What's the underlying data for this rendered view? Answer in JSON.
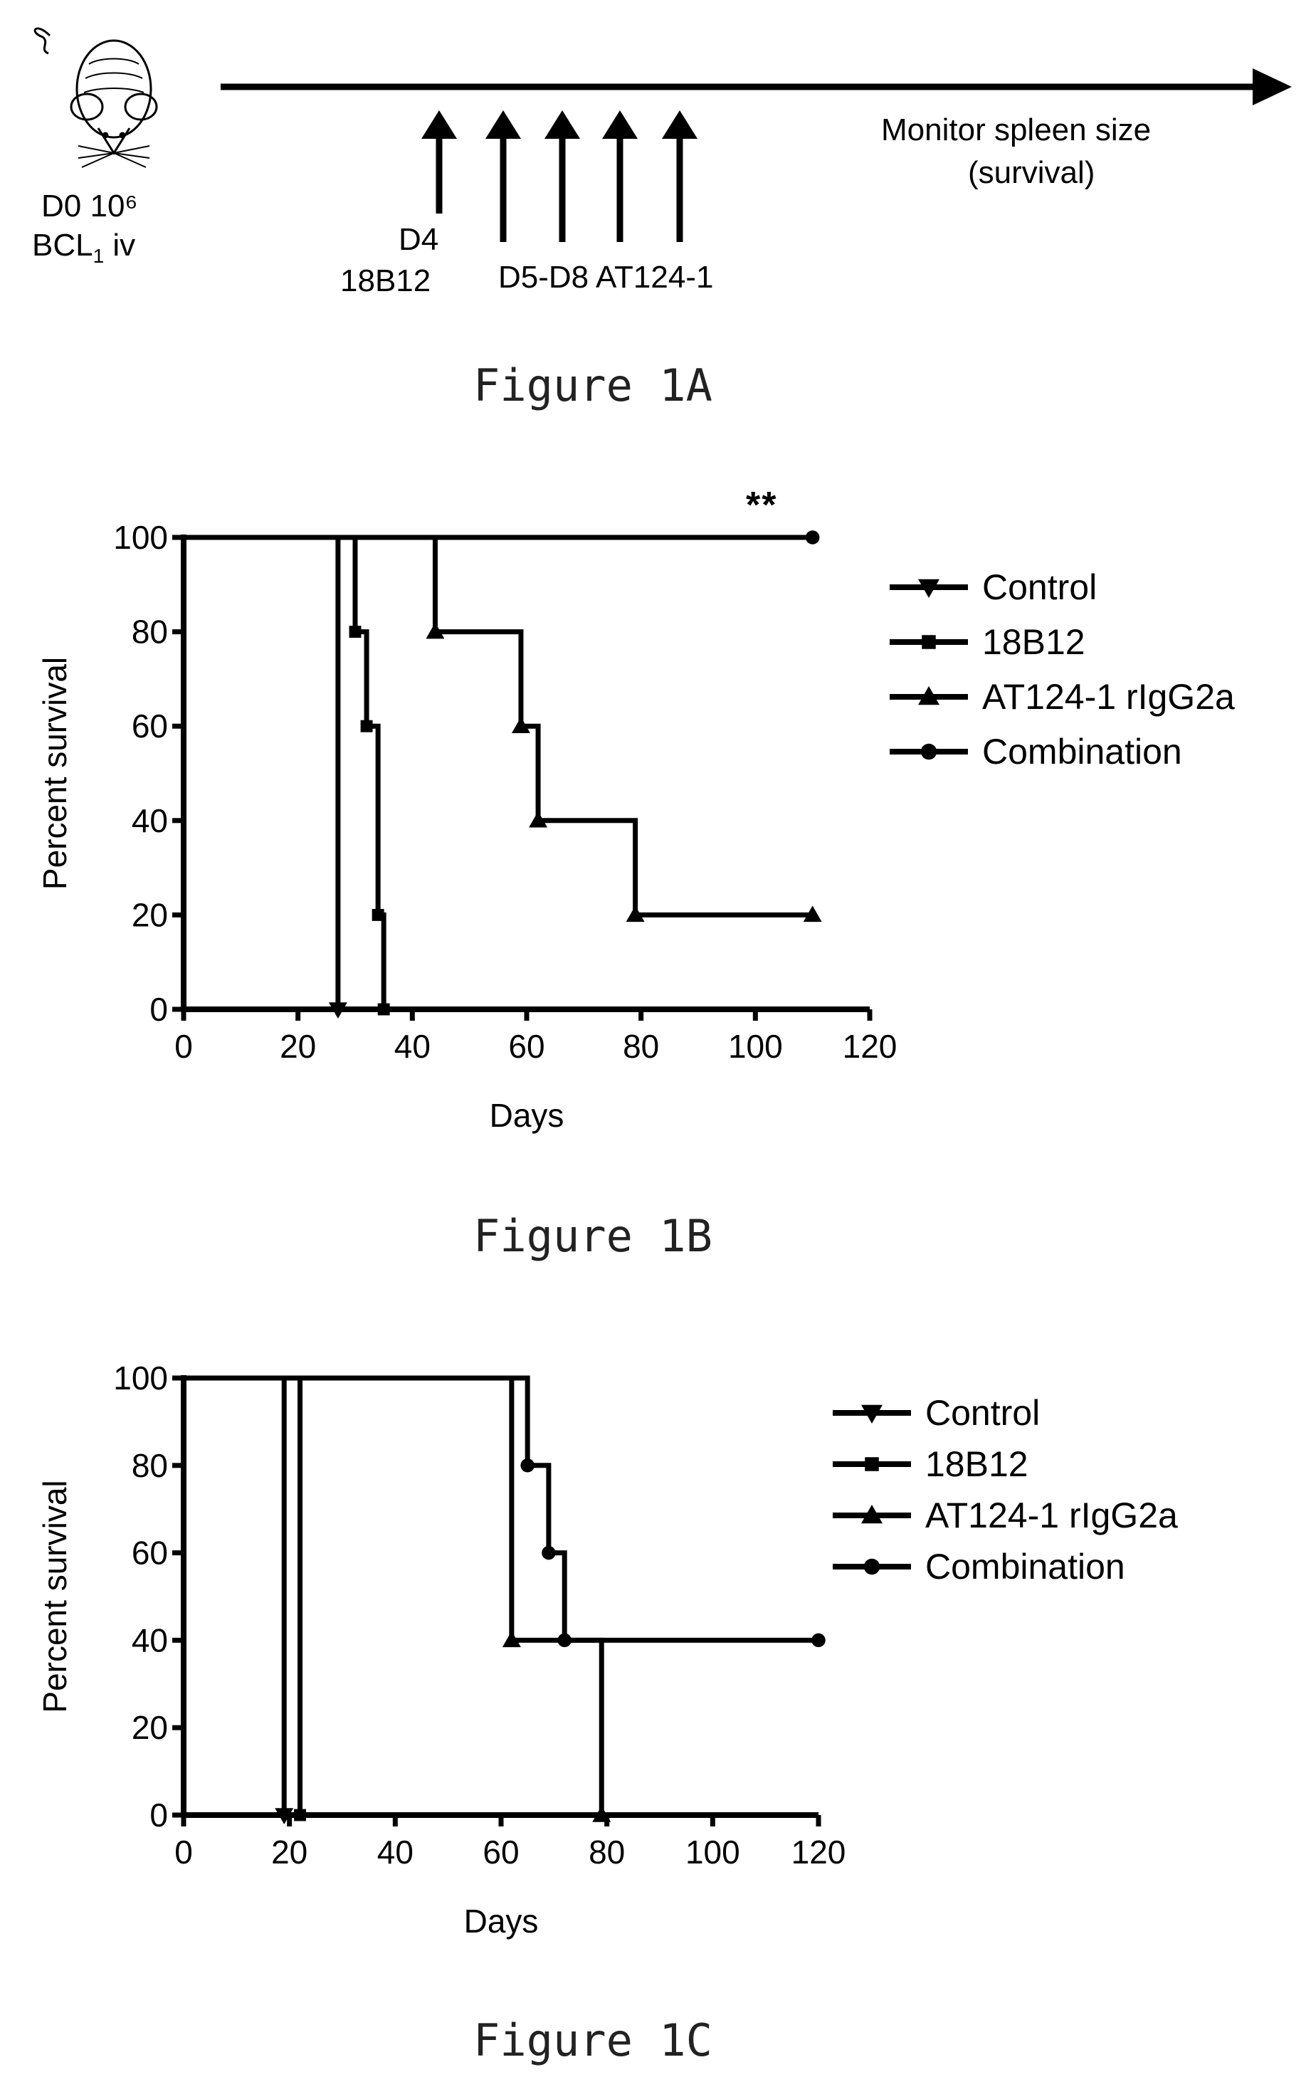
{
  "figure_1a": {
    "caption": "Figure 1A",
    "mouse": {
      "icon": "mouse-icon",
      "line1": "D0 10⁶",
      "line2_pre": "BCL",
      "line2_sub": "1",
      "line2_post": " iv"
    },
    "d4": {
      "day": "D4",
      "drug": "18B12",
      "arrow_count": 1
    },
    "d5_d8": {
      "label": "D5-D8 AT124-1",
      "arrow_count": 4
    },
    "monitor": {
      "line1": "Monitor spleen size",
      "line2": "(survival)"
    }
  },
  "figure_1b": {
    "caption": "Figure 1B",
    "significance": "**"
  },
  "figure_1c": {
    "caption": "Figure 1C"
  },
  "chart_data": [
    {
      "type": "line",
      "id": "1B",
      "step": true,
      "xlabel": "Days",
      "ylabel": "Percent survival",
      "xlim": [
        0,
        120
      ],
      "ylim": [
        0,
        100
      ],
      "xticks": [
        0,
        20,
        40,
        60,
        80,
        100,
        120
      ],
      "yticks": [
        0,
        20,
        40,
        60,
        80,
        100
      ],
      "legend_position": "right",
      "series": [
        {
          "name": "Control",
          "marker": "tri-down",
          "x": [
            0,
            27,
            27
          ],
          "y": [
            100,
            100,
            0
          ]
        },
        {
          "name": "18B12",
          "marker": "square",
          "x": [
            0,
            30,
            30,
            32,
            32,
            34,
            34,
            35,
            35
          ],
          "y": [
            100,
            100,
            80,
            80,
            60,
            60,
            20,
            20,
            0
          ]
        },
        {
          "name": "AT124-1 rIgG2a",
          "marker": "tri-up",
          "x": [
            0,
            44,
            44,
            59,
            59,
            62,
            62,
            79,
            79,
            110
          ],
          "y": [
            100,
            100,
            80,
            80,
            60,
            60,
            40,
            40,
            20,
            20
          ]
        },
        {
          "name": "Combination",
          "marker": "circle",
          "x": [
            0,
            110
          ],
          "y": [
            100,
            100
          ]
        }
      ]
    },
    {
      "type": "line",
      "id": "1C",
      "step": true,
      "xlabel": "Days",
      "ylabel": "Percent survival",
      "xlim": [
        0,
        120
      ],
      "ylim": [
        0,
        100
      ],
      "xticks": [
        0,
        20,
        40,
        60,
        80,
        100,
        120
      ],
      "yticks": [
        0,
        20,
        40,
        60,
        80,
        100
      ],
      "legend_position": "right",
      "series": [
        {
          "name": "Control",
          "marker": "tri-down",
          "x": [
            0,
            19,
            19
          ],
          "y": [
            100,
            100,
            0
          ]
        },
        {
          "name": "18B12",
          "marker": "square",
          "x": [
            0,
            22,
            22
          ],
          "y": [
            100,
            100,
            0
          ]
        },
        {
          "name": "AT124-1 rIgG2a",
          "marker": "tri-up",
          "x": [
            0,
            62,
            62,
            79,
            79
          ],
          "y": [
            100,
            100,
            40,
            40,
            0
          ]
        },
        {
          "name": "Combination",
          "marker": "circle",
          "x": [
            0,
            65,
            65,
            69,
            69,
            72,
            72,
            120
          ],
          "y": [
            100,
            100,
            80,
            80,
            60,
            60,
            40,
            40
          ]
        }
      ]
    }
  ]
}
